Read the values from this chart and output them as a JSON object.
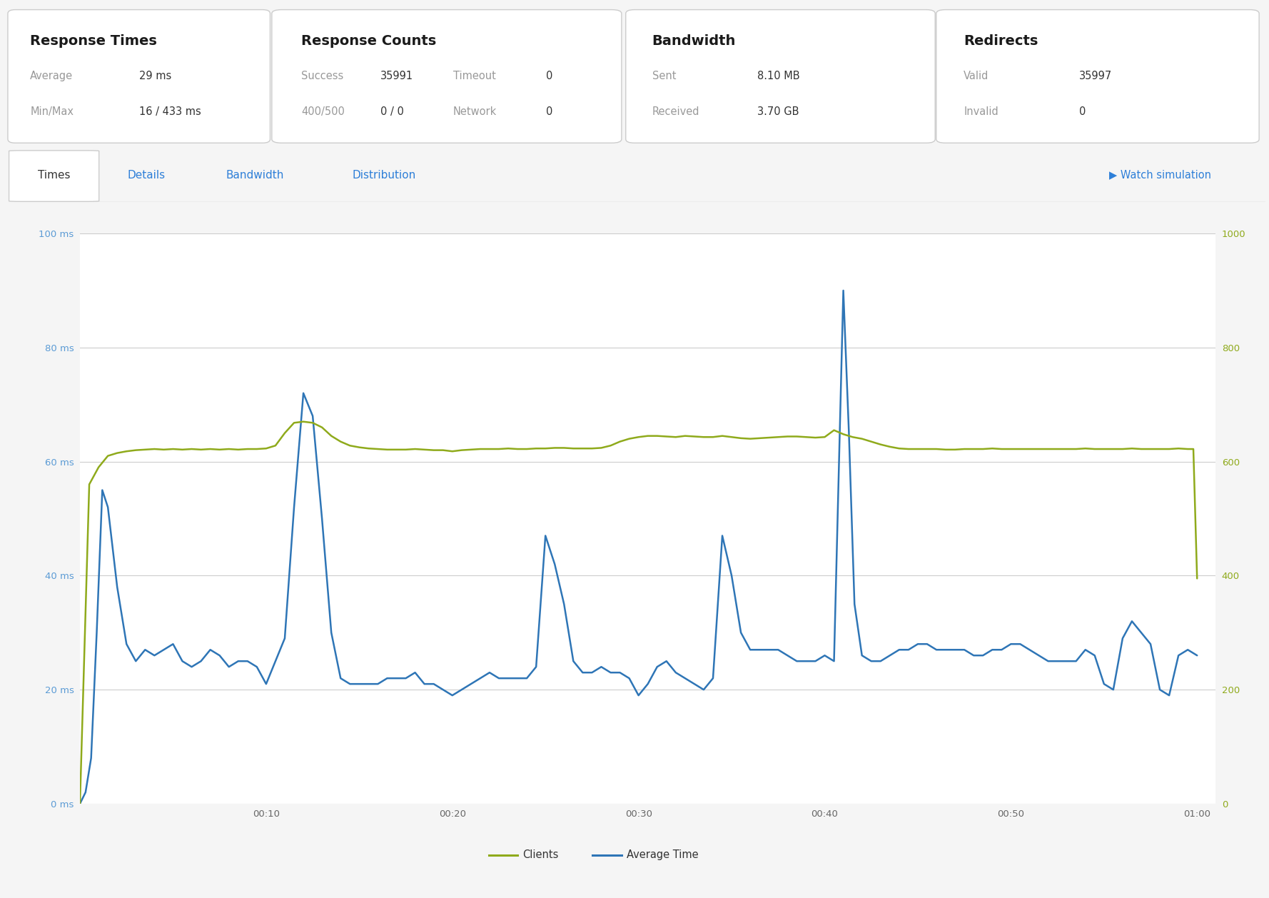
{
  "bg_color": "#f5f5f5",
  "card_bg": "#ffffff",
  "card_border": "#dddddd",
  "cards": [
    {
      "title": "Response Times",
      "rows": [
        {
          "label": "Average",
          "value": "29 ms"
        },
        {
          "label": "Min/Max",
          "value": "16 / 433 ms"
        }
      ]
    },
    {
      "title": "Response Counts",
      "rows": [
        {
          "label": "Success",
          "value": "35991",
          "label2": "Timeout",
          "value2": "0"
        },
        {
          "label": "400/500",
          "value": "0 / 0",
          "label2": "Network",
          "value2": "0"
        }
      ]
    },
    {
      "title": "Bandwidth",
      "rows": [
        {
          "label": "Sent",
          "value": "8.10 MB"
        },
        {
          "label": "Received",
          "value": "3.70 GB"
        }
      ]
    },
    {
      "title": "Redirects",
      "rows": [
        {
          "label": "Valid",
          "value": "35997"
        },
        {
          "label": "Invalid",
          "value": "0"
        }
      ]
    }
  ],
  "tabs": [
    "Times",
    "Details",
    "Bandwidth",
    "Distribution"
  ],
  "active_tab": "Times",
  "watch_text": "▶ Watch simulation",
  "left_axis_ticks": [
    "0 ms",
    "20 ms",
    "40 ms",
    "60 ms",
    "80 ms",
    "100 ms"
  ],
  "left_axis_values": [
    0,
    20,
    40,
    60,
    80,
    100
  ],
  "right_axis_ticks": [
    "0",
    "200",
    "400",
    "600",
    "800",
    "1000"
  ],
  "right_axis_values": [
    0,
    200,
    400,
    600,
    800,
    1000
  ],
  "x_ticks": [
    "00:10",
    "00:20",
    "00:30",
    "00:40",
    "00:50",
    "01:00"
  ],
  "x_tick_positions": [
    10,
    20,
    30,
    40,
    50,
    60
  ],
  "left_tick_color": "#5b9bd5",
  "right_tick_color": "#8faa1b",
  "x_tick_color": "#666666",
  "grid_color": "#cccccc",
  "legend_clients_color": "#8faa1b",
  "legend_avg_color": "#2e75b6",
  "clients_data": [
    [
      0,
      0
    ],
    [
      0.5,
      560
    ],
    [
      1,
      590
    ],
    [
      1.5,
      610
    ],
    [
      2,
      615
    ],
    [
      2.5,
      618
    ],
    [
      3,
      620
    ],
    [
      3.5,
      621
    ],
    [
      4,
      622
    ],
    [
      4.5,
      621
    ],
    [
      5,
      622
    ],
    [
      5.5,
      621
    ],
    [
      6,
      622
    ],
    [
      6.5,
      621
    ],
    [
      7,
      622
    ],
    [
      7.5,
      621
    ],
    [
      8,
      622
    ],
    [
      8.5,
      621
    ],
    [
      9,
      622
    ],
    [
      9.5,
      622
    ],
    [
      10,
      623
    ],
    [
      10.5,
      628
    ],
    [
      11,
      650
    ],
    [
      11.5,
      668
    ],
    [
      12,
      670
    ],
    [
      12.5,
      668
    ],
    [
      13,
      660
    ],
    [
      13.5,
      645
    ],
    [
      14,
      635
    ],
    [
      14.5,
      628
    ],
    [
      15,
      625
    ],
    [
      15.5,
      623
    ],
    [
      16,
      622
    ],
    [
      16.5,
      621
    ],
    [
      17,
      621
    ],
    [
      17.5,
      621
    ],
    [
      18,
      622
    ],
    [
      18.5,
      621
    ],
    [
      19,
      620
    ],
    [
      19.5,
      620
    ],
    [
      20,
      618
    ],
    [
      20.5,
      620
    ],
    [
      21,
      621
    ],
    [
      21.5,
      622
    ],
    [
      22,
      622
    ],
    [
      22.5,
      622
    ],
    [
      23,
      623
    ],
    [
      23.5,
      622
    ],
    [
      24,
      622
    ],
    [
      24.5,
      623
    ],
    [
      25,
      623
    ],
    [
      25.5,
      624
    ],
    [
      26,
      624
    ],
    [
      26.5,
      623
    ],
    [
      27,
      623
    ],
    [
      27.5,
      623
    ],
    [
      28,
      624
    ],
    [
      28.5,
      628
    ],
    [
      29,
      635
    ],
    [
      29.5,
      640
    ],
    [
      30,
      643
    ],
    [
      30.5,
      645
    ],
    [
      31,
      645
    ],
    [
      31.5,
      644
    ],
    [
      32,
      643
    ],
    [
      32.5,
      645
    ],
    [
      33,
      644
    ],
    [
      33.5,
      643
    ],
    [
      34,
      643
    ],
    [
      34.5,
      645
    ],
    [
      35,
      643
    ],
    [
      35.5,
      641
    ],
    [
      36,
      640
    ],
    [
      36.5,
      641
    ],
    [
      37,
      642
    ],
    [
      37.5,
      643
    ],
    [
      38,
      644
    ],
    [
      38.5,
      644
    ],
    [
      39,
      643
    ],
    [
      39.5,
      642
    ],
    [
      40,
      643
    ],
    [
      40.5,
      655
    ],
    [
      41,
      648
    ],
    [
      41.5,
      643
    ],
    [
      42,
      640
    ],
    [
      42.5,
      635
    ],
    [
      43,
      630
    ],
    [
      43.5,
      626
    ],
    [
      44,
      623
    ],
    [
      44.5,
      622
    ],
    [
      45,
      622
    ],
    [
      45.5,
      622
    ],
    [
      46,
      622
    ],
    [
      46.5,
      621
    ],
    [
      47,
      621
    ],
    [
      47.5,
      622
    ],
    [
      48,
      622
    ],
    [
      48.5,
      622
    ],
    [
      49,
      623
    ],
    [
      49.5,
      622
    ],
    [
      50,
      622
    ],
    [
      50.5,
      622
    ],
    [
      51,
      622
    ],
    [
      51.5,
      622
    ],
    [
      52,
      622
    ],
    [
      52.5,
      622
    ],
    [
      53,
      622
    ],
    [
      53.5,
      622
    ],
    [
      54,
      623
    ],
    [
      54.5,
      622
    ],
    [
      55,
      622
    ],
    [
      55.5,
      622
    ],
    [
      56,
      622
    ],
    [
      56.5,
      623
    ],
    [
      57,
      622
    ],
    [
      57.5,
      622
    ],
    [
      58,
      622
    ],
    [
      58.5,
      622
    ],
    [
      59,
      623
    ],
    [
      59.5,
      622
    ],
    [
      59.8,
      622
    ],
    [
      60,
      395
    ]
  ],
  "avg_time_data": [
    [
      0,
      0
    ],
    [
      0.3,
      2
    ],
    [
      0.6,
      8
    ],
    [
      0.9,
      30
    ],
    [
      1.2,
      55
    ],
    [
      1.5,
      52
    ],
    [
      2,
      38
    ],
    [
      2.5,
      28
    ],
    [
      3,
      25
    ],
    [
      3.5,
      27
    ],
    [
      4,
      26
    ],
    [
      4.5,
      27
    ],
    [
      5,
      28
    ],
    [
      5.5,
      25
    ],
    [
      6,
      24
    ],
    [
      6.5,
      25
    ],
    [
      7,
      27
    ],
    [
      7.5,
      26
    ],
    [
      8,
      24
    ],
    [
      8.5,
      25
    ],
    [
      9,
      25
    ],
    [
      9.5,
      24
    ],
    [
      10,
      21
    ],
    [
      10.5,
      25
    ],
    [
      11,
      29
    ],
    [
      11.5,
      52
    ],
    [
      12,
      72
    ],
    [
      12.5,
      68
    ],
    [
      13,
      50
    ],
    [
      13.5,
      30
    ],
    [
      14,
      22
    ],
    [
      14.5,
      21
    ],
    [
      15,
      21
    ],
    [
      15.5,
      21
    ],
    [
      16,
      21
    ],
    [
      16.5,
      22
    ],
    [
      17,
      22
    ],
    [
      17.5,
      22
    ],
    [
      18,
      23
    ],
    [
      18.5,
      21
    ],
    [
      19,
      21
    ],
    [
      19.5,
      20
    ],
    [
      20,
      19
    ],
    [
      20.5,
      20
    ],
    [
      21,
      21
    ],
    [
      21.5,
      22
    ],
    [
      22,
      23
    ],
    [
      22.5,
      22
    ],
    [
      23,
      22
    ],
    [
      23.5,
      22
    ],
    [
      24,
      22
    ],
    [
      24.5,
      24
    ],
    [
      25,
      47
    ],
    [
      25.5,
      42
    ],
    [
      26,
      35
    ],
    [
      26.5,
      25
    ],
    [
      27,
      23
    ],
    [
      27.5,
      23
    ],
    [
      28,
      24
    ],
    [
      28.5,
      23
    ],
    [
      29,
      23
    ],
    [
      29.5,
      22
    ],
    [
      30,
      19
    ],
    [
      30.5,
      21
    ],
    [
      31,
      24
    ],
    [
      31.5,
      25
    ],
    [
      32,
      23
    ],
    [
      32.5,
      22
    ],
    [
      33,
      21
    ],
    [
      33.5,
      20
    ],
    [
      34,
      22
    ],
    [
      34.5,
      47
    ],
    [
      35,
      40
    ],
    [
      35.5,
      30
    ],
    [
      36,
      27
    ],
    [
      36.5,
      27
    ],
    [
      37,
      27
    ],
    [
      37.5,
      27
    ],
    [
      38,
      26
    ],
    [
      38.5,
      25
    ],
    [
      39,
      25
    ],
    [
      39.5,
      25
    ],
    [
      40,
      26
    ],
    [
      40.5,
      25
    ],
    [
      41,
      90
    ],
    [
      41.3,
      65
    ],
    [
      41.6,
      35
    ],
    [
      42,
      26
    ],
    [
      42.5,
      25
    ],
    [
      43,
      25
    ],
    [
      43.5,
      26
    ],
    [
      44,
      27
    ],
    [
      44.5,
      27
    ],
    [
      45,
      28
    ],
    [
      45.5,
      28
    ],
    [
      46,
      27
    ],
    [
      46.5,
      27
    ],
    [
      47,
      27
    ],
    [
      47.5,
      27
    ],
    [
      48,
      26
    ],
    [
      48.5,
      26
    ],
    [
      49,
      27
    ],
    [
      49.5,
      27
    ],
    [
      50,
      28
    ],
    [
      50.5,
      28
    ],
    [
      51,
      27
    ],
    [
      51.5,
      26
    ],
    [
      52,
      25
    ],
    [
      52.5,
      25
    ],
    [
      53,
      25
    ],
    [
      53.5,
      25
    ],
    [
      54,
      27
    ],
    [
      54.5,
      26
    ],
    [
      55,
      21
    ],
    [
      55.5,
      20
    ],
    [
      56,
      29
    ],
    [
      56.5,
      32
    ],
    [
      57,
      30
    ],
    [
      57.5,
      28
    ],
    [
      58,
      20
    ],
    [
      58.5,
      19
    ],
    [
      59,
      26
    ],
    [
      59.5,
      27
    ],
    [
      60,
      26
    ]
  ]
}
